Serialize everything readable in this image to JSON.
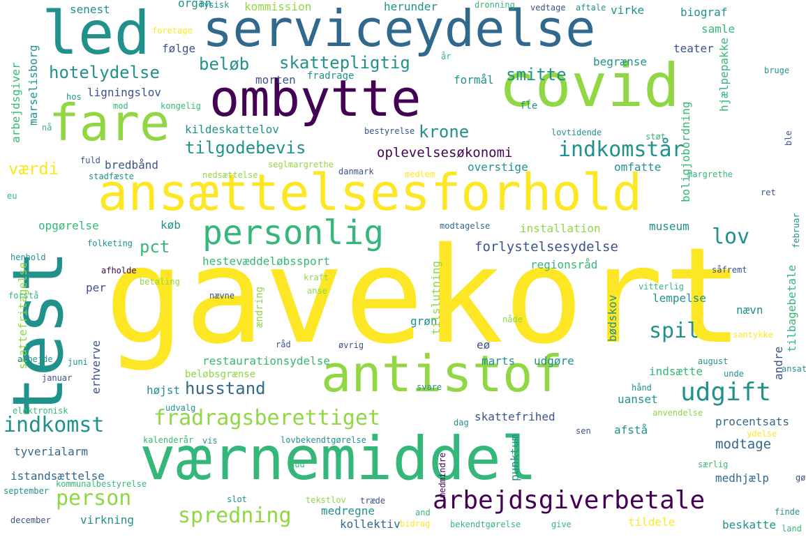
{
  "palette": {
    "purple": "#440154",
    "indigo": "#3b528b",
    "blue": "#31688e",
    "teal": "#21918c",
    "green": "#35b779",
    "lime": "#90d743",
    "yellow": "#fde725"
  },
  "words": [
    "gavekort",
    "test",
    "værnemiddel",
    "ansættelsesforhold",
    "serviceydelse",
    "covid",
    "ombytte",
    "led",
    "antistof",
    "fare",
    "personlig",
    "udgift",
    "arbejdsgiverbetale",
    "indkomst",
    "fradragsberettiget",
    "indkomstår",
    "person",
    "spredning",
    "husstand",
    "tilgodebevis",
    "hotelydelse",
    "spil",
    "smitte",
    "beløb",
    "skattepligtig",
    "krone",
    "oplevelsesøkonomi",
    "forlystelsesydelse",
    "lov",
    "pct",
    "værdi",
    "modtage",
    "procentsats",
    "hestevæddeløbssport",
    "restaurationsydelse",
    "installation",
    "museum",
    "ligningslov",
    "bredbånd",
    "opgørelse",
    "istandsættelse",
    "tyverialarm",
    "virkning",
    "kollektiv",
    "medregne",
    "medhjælp",
    "skattefrihed",
    "afstå",
    "uanset",
    "udgøre",
    "marts",
    "beskatte",
    "tildele",
    "indsætte",
    "lempelse",
    "regionsråd",
    "omfatte",
    "overstige",
    "begrænse",
    "teater",
    "samle",
    "biograf",
    "formål",
    "morten",
    "fradrage",
    "herunder",
    "kommission",
    "organ",
    "fysisk",
    "dronning",
    "vedtage",
    "aftale",
    "virke",
    "følge",
    "senest",
    "kildeskattelov",
    "køb",
    "per",
    "erhverve",
    "højst",
    "grøn",
    "eø",
    "tilslutning",
    "beløbsgrænse",
    "ændring",
    "skattefritagelse",
    "arbejdsgiver",
    "marselisborg",
    "boligjobordning",
    "hjælpepakke",
    "tilbagebetale",
    "bødskov",
    "punktum",
    "medmindre",
    "andre",
    "nævn",
    "foretage",
    "hos",
    "mod",
    "kongelig",
    "nå",
    "fuld",
    "stadfæste",
    "nedsættelse",
    "seglmargrethe",
    "danmark",
    "medlem",
    "margrethe",
    "lovtidende",
    "støt",
    "bestyrelse",
    "fle",
    "bruge",
    "år",
    "ble",
    "modtagelse",
    "ret",
    "eu",
    "henhold",
    "folketing",
    "afholde",
    "betaling",
    "forstå",
    "kraft",
    "anse",
    "nævne",
    "nåde",
    "vitterlig",
    "santykke",
    "råd",
    "øvrig",
    "arbejde",
    "juni",
    "januar",
    "udvalg",
    "svare",
    "august",
    "unde",
    "ansat",
    "hånd",
    "anvendelse",
    "elektronisk",
    "kalenderår",
    "vis",
    "lovbekendtgørelse",
    "sen",
    "dag",
    "ydelse",
    "gud",
    "særlig",
    "gø",
    "september",
    "kommunalbestyrelse",
    "slot",
    "tekstlov",
    "træde",
    "and",
    "finde",
    "december",
    "bidrag",
    "bekendtgørelse",
    "give",
    "land",
    "februar",
    "såfremt",
    "udvalg2"
  ]
}
